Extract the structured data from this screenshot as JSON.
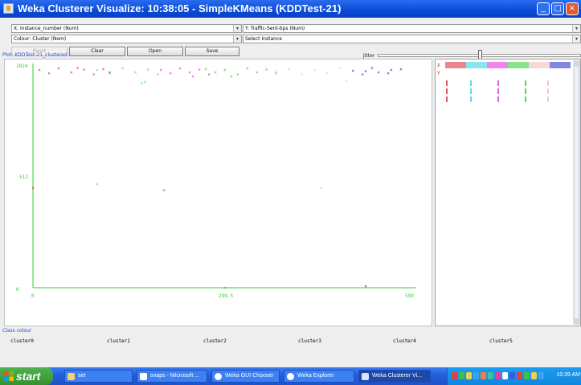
{
  "window": {
    "title": "Weka Clusterer Visualize: 10:38:05 - SimpleKMeans (KDDTest-21)"
  },
  "controls": {
    "x_axis": "X: Instance_number (Num)",
    "y_axis": "Y: Traffic-Sent-bps (Num)",
    "colour": "Colour: Cluster (Nom)",
    "instance": "Select Instance",
    "reset": "Reset",
    "clear": "Clear",
    "open": "Open",
    "save": "Save",
    "jitter_label": "Jitter"
  },
  "plot": {
    "title": "Plot: KDDTest-21_clustered",
    "y_ticks": [
      "1024",
      "512",
      "0"
    ],
    "x_ticks": [
      "0",
      "299.5",
      "599"
    ]
  },
  "matrix": {
    "x_label": "X",
    "y_label": "Y"
  },
  "legend": {
    "title": "Class colour",
    "clusters": [
      {
        "name": "cluster0",
        "color": "#1a22c8"
      },
      {
        "name": "cluster1",
        "color": "#e0202a"
      },
      {
        "name": "cluster2",
        "color": "#22cc22"
      },
      {
        "name": "cluster3",
        "color": "#28d0e0"
      },
      {
        "name": "cluster4",
        "color": "#f4b8b8"
      },
      {
        "name": "cluster5",
        "color": "#e020e0"
      }
    ]
  },
  "chart_data": {
    "type": "scatter",
    "title": "Plot: KDDTest-21_clustered",
    "xlabel": "Instance_number",
    "ylabel": "Traffic-Sent-bps",
    "xlim": [
      0,
      599
    ],
    "ylim": [
      0,
      1024
    ],
    "x_ticks": [
      "0",
      "299.5",
      "599"
    ],
    "y_ticks": [
      "1024",
      "512",
      "0"
    ],
    "series": [
      {
        "name": "cluster0",
        "points": [
          [
            560,
            1005
          ],
          [
            520,
            1000
          ],
          [
            515,
            985
          ],
          [
            575,
            1010
          ],
          [
            530,
            1015
          ],
          [
            500,
            1002
          ],
          [
            540,
            995
          ],
          [
            555,
            990
          ],
          [
            520,
            8
          ]
        ]
      },
      {
        "name": "cluster1",
        "points": [
          [
            10,
            1005
          ],
          [
            25,
            990
          ],
          [
            40,
            1012
          ],
          [
            60,
            995
          ],
          [
            80,
            1008
          ],
          [
            95,
            985
          ],
          [
            110,
            1010
          ],
          [
            120,
            995
          ],
          [
            70,
            1015
          ],
          [
            0,
            462
          ]
        ]
      },
      {
        "name": "cluster2",
        "points": [
          [
            270,
            1010
          ],
          [
            285,
            995
          ],
          [
            300,
            1005
          ],
          [
            320,
            985
          ],
          [
            335,
            1012
          ],
          [
            350,
            995
          ],
          [
            365,
            1008
          ],
          [
            380,
            990
          ],
          [
            310,
            975
          ],
          [
            300,
            0
          ]
        ]
      },
      {
        "name": "cluster3",
        "points": [
          [
            100,
            1005
          ],
          [
            120,
            990
          ],
          [
            140,
            1012
          ],
          [
            160,
            995
          ],
          [
            180,
            1008
          ],
          [
            195,
            985
          ],
          [
            175,
            950
          ],
          [
            170,
            945
          ],
          [
            100,
            478
          ]
        ]
      },
      {
        "name": "cluster4",
        "points": [
          [
            380,
            1000
          ],
          [
            400,
            1010
          ],
          [
            420,
            985
          ],
          [
            440,
            1005
          ],
          [
            460,
            990
          ],
          [
            480,
            1012
          ],
          [
            490,
            955
          ],
          [
            450,
            460
          ]
        ]
      },
      {
        "name": "cluster5",
        "points": [
          [
            200,
            1005
          ],
          [
            215,
            990
          ],
          [
            230,
            1012
          ],
          [
            245,
            995
          ],
          [
            260,
            1008
          ],
          [
            275,
            985
          ],
          [
            250,
            975
          ],
          [
            205,
            450
          ]
        ]
      }
    ]
  },
  "taskbar": {
    "start": "start",
    "items": [
      "set",
      "snaps - Microsoft ...",
      "Weka GUI Chooser",
      "Weka Explorer",
      "Weka Clusterer Vi..."
    ],
    "clock": "10:39 AM"
  }
}
